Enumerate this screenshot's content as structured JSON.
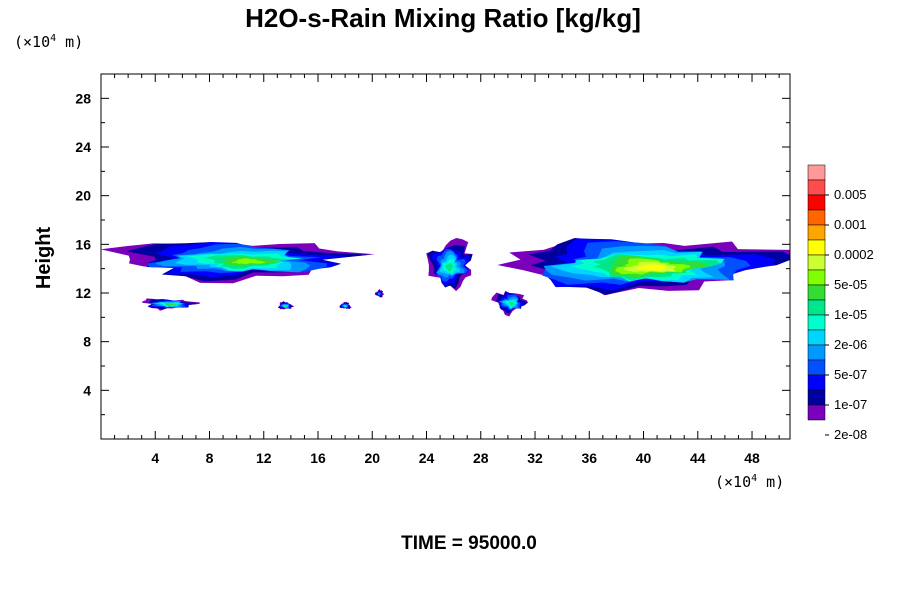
{
  "chart_data": {
    "type": "heatmap",
    "title": "H2O-s-Rain Mixing Ratio [kg/kg]",
    "xlabel": "",
    "ylabel": "Height",
    "x_unit_prefix": "(×10",
    "x_unit_exp": "4",
    "x_unit_suffix": " m)",
    "y_unit_prefix": "(×10",
    "y_unit_exp": "4",
    "y_unit_suffix": " m)",
    "xlim": [
      0,
      50.8
    ],
    "ylim": [
      0,
      30
    ],
    "xticks": [
      "4",
      "8",
      "12",
      "16",
      "20",
      "24",
      "28",
      "32",
      "36",
      "40",
      "44",
      "48"
    ],
    "yticks": [
      "4",
      "8",
      "12",
      "16",
      "20",
      "24",
      "28"
    ],
    "colorbar": {
      "labels": [
        "0.005",
        "0.001",
        "0.0002",
        "5e-05",
        "1e-05",
        "2e-06",
        "5e-07",
        "1e-07",
        "2e-08"
      ],
      "colors": [
        "#ff9999",
        "#ff4d4d",
        "#ff0000",
        "#ff6600",
        "#ffa500",
        "#ffff00",
        "#ccff33",
        "#7fff00",
        "#33dd33",
        "#00e68a",
        "#00ffcc",
        "#00d5ff",
        "#0099ff",
        "#0050ff",
        "#0000ff",
        "#0000a0",
        "#7a00bb"
      ]
    },
    "time_label": "TIME = 95000.0",
    "features": [
      {
        "x0": 0.0,
        "x1": 19.5,
        "y0": 13.0,
        "y1": 16.5,
        "peak": 9,
        "desc": "western rain layer"
      },
      {
        "x0": 2.8,
        "x1": 7.0,
        "y0": 10.6,
        "y1": 11.6,
        "peak": 8,
        "desc": "low blob 1"
      },
      {
        "x0": 13.0,
        "x1": 14.2,
        "y0": 10.6,
        "y1": 11.3,
        "peak": 7,
        "desc": "low blob 2"
      },
      {
        "x0": 17.6,
        "x1": 18.5,
        "y0": 10.6,
        "y1": 11.3,
        "peak": 6,
        "desc": "low blob 3"
      },
      {
        "x0": 20.2,
        "x1": 20.9,
        "y0": 11.6,
        "y1": 12.3,
        "peak": 4,
        "desc": "low blob 4"
      },
      {
        "x0": 23.9,
        "x1": 27.6,
        "y0": 12.2,
        "y1": 16.4,
        "peak": 7,
        "desc": "central cell"
      },
      {
        "x0": 28.5,
        "x1": 50.8,
        "y0": 11.8,
        "y1": 16.8,
        "peak": 11,
        "desc": "eastern rain layer"
      },
      {
        "x0": 28.7,
        "x1": 31.5,
        "y0": 10.2,
        "y1": 12.2,
        "peak": 7,
        "desc": "low blob 5"
      }
    ]
  }
}
